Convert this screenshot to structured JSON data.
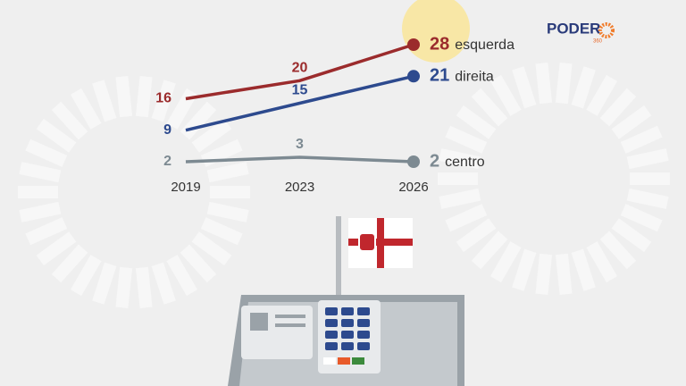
{
  "chart_data": {
    "type": "line",
    "categories": [
      "2019",
      "2023",
      "2026"
    ],
    "series": [
      {
        "name": "esquerda",
        "color": "#9b2b2c",
        "values": [
          16,
          20,
          28
        ]
      },
      {
        "name": "direita",
        "color": "#2d4a8e",
        "values": [
          9,
          15,
          21
        ]
      },
      {
        "name": "centro",
        "color": "#7d8a92",
        "values": [
          2,
          3,
          2
        ]
      }
    ],
    "highlight_color": "#f8e7a6"
  },
  "logo": {
    "text": "PODER",
    "subtext": "360"
  }
}
